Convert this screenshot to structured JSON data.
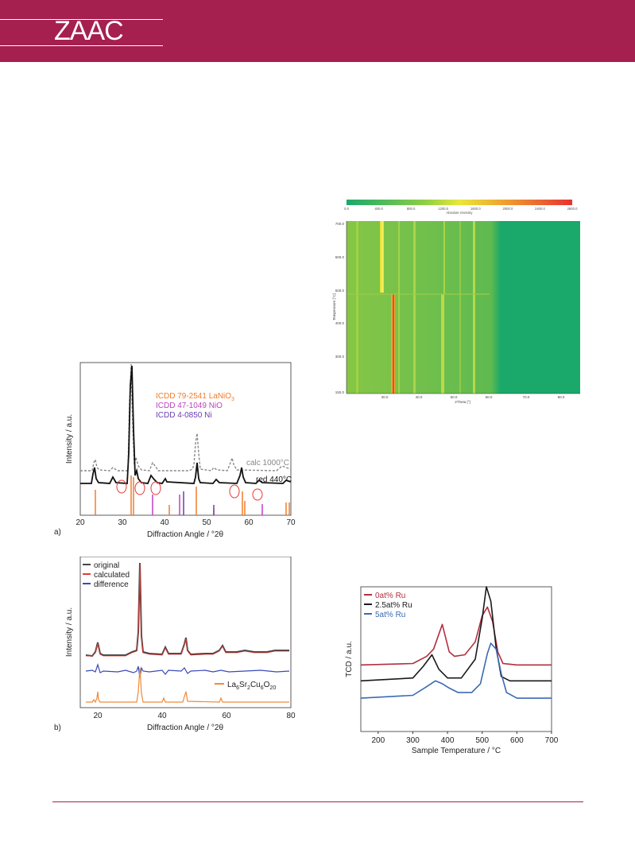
{
  "header": {
    "brand": "ZAAC",
    "color": "#a51f4f"
  },
  "heatmap": {
    "colorbar_ticks": [
      "0.0",
      "400.0",
      "800.0",
      "1200.0",
      "1600.0",
      "2000.0",
      "2400.0",
      "2800.0"
    ],
    "colorbar_label": "Absolute Intensity",
    "y_ticks": [
      "700.0",
      "600.0",
      "500.0",
      "400.0",
      "300.0",
      "150.0"
    ],
    "y_label": "Temperature [°C]",
    "x_ticks": [
      "30.0",
      "40.0",
      "50.0",
      "60.0",
      "70.0",
      "80.0"
    ],
    "x_label": "2Theta [°]"
  },
  "xrd_a": {
    "panel": "a)",
    "legend": [
      "ICDD 79-2541 LaNiO",
      "ICDD 47-1049 NiO",
      "ICDD 4-0850 Ni"
    ],
    "legend_sub": "3",
    "curve_labels": [
      "calc 1000°C",
      "red 440°C"
    ],
    "y_label": "Intensity / a.u.",
    "x_label": "Diffraction Angle / °2θ",
    "x_ticks": [
      "20",
      "30",
      "40",
      "50",
      "60",
      "70"
    ]
  },
  "xrd_b": {
    "panel": "b)",
    "legend": [
      "original",
      "calculated",
      "difference"
    ],
    "phase_parts": [
      "La",
      "6",
      "Sr",
      "2",
      "Cu",
      "6",
      "O",
      "20"
    ],
    "y_label": "Intensity / a.u.",
    "x_label": "Diffraction Angle / °2θ",
    "x_ticks": [
      "20",
      "40",
      "60",
      "80"
    ]
  },
  "tpr": {
    "legend": [
      "0at% Ru",
      "2.5at% Ru",
      "5at% Ru"
    ],
    "y_label": "TCD / a.u.",
    "x_label": "Sample Temperature / °C",
    "x_ticks": [
      "200",
      "300",
      "400",
      "500",
      "600",
      "700"
    ]
  },
  "chart_data": [
    {
      "type": "line",
      "title": "",
      "xlabel": "Sample Temperature / °C",
      "ylabel": "TCD / a.u.",
      "xlim": [
        150,
        700
      ],
      "series": [
        {
          "name": "0at% Ru",
          "color": "#b03040",
          "x": [
            150,
            300,
            340,
            360,
            385,
            405,
            420,
            450,
            480,
            500,
            515,
            530,
            545,
            560,
            600,
            700
          ],
          "y": [
            0.46,
            0.47,
            0.52,
            0.57,
            0.74,
            0.55,
            0.52,
            0.53,
            0.62,
            0.8,
            0.86,
            0.76,
            0.55,
            0.47,
            0.46,
            0.46
          ]
        },
        {
          "name": "2.5at% Ru",
          "color": "#1a1a1a",
          "x": [
            150,
            300,
            330,
            355,
            375,
            400,
            440,
            480,
            500,
            512,
            525,
            540,
            555,
            580,
            700
          ],
          "y": [
            0.35,
            0.37,
            0.45,
            0.53,
            0.43,
            0.37,
            0.37,
            0.5,
            0.78,
            1.0,
            0.9,
            0.58,
            0.38,
            0.35,
            0.35
          ]
        },
        {
          "name": "5at% Ru",
          "color": "#3a6ab4",
          "x": [
            150,
            300,
            340,
            365,
            385,
            405,
            430,
            470,
            495,
            515,
            525,
            540,
            555,
            570,
            600,
            700
          ],
          "y": [
            0.23,
            0.25,
            0.31,
            0.35,
            0.33,
            0.3,
            0.27,
            0.27,
            0.33,
            0.54,
            0.61,
            0.57,
            0.4,
            0.27,
            0.23,
            0.23
          ]
        }
      ]
    }
  ]
}
